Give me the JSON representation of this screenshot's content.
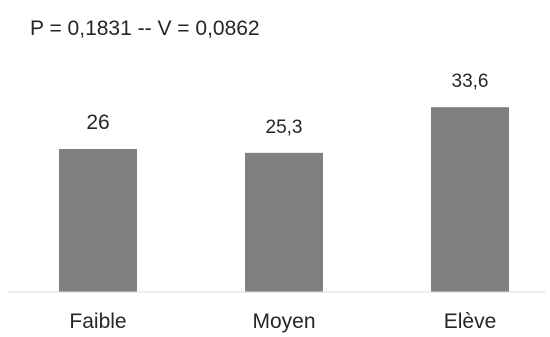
{
  "chart_data": {
    "type": "bar",
    "title": "P = 0,1831 -- V = 0,0862",
    "categories": [
      "Faible",
      "Moyen",
      "Elève"
    ],
    "values": [
      26,
      25.3,
      33.6
    ],
    "data_labels": [
      "26",
      "25,3",
      "33,6"
    ],
    "xlabel": "",
    "ylabel": "",
    "ylim": [
      0,
      40
    ],
    "grid": false,
    "legend": "none",
    "bar_color": "#808080",
    "axis_color": "#d9d9d9",
    "text_color": "#262626"
  }
}
